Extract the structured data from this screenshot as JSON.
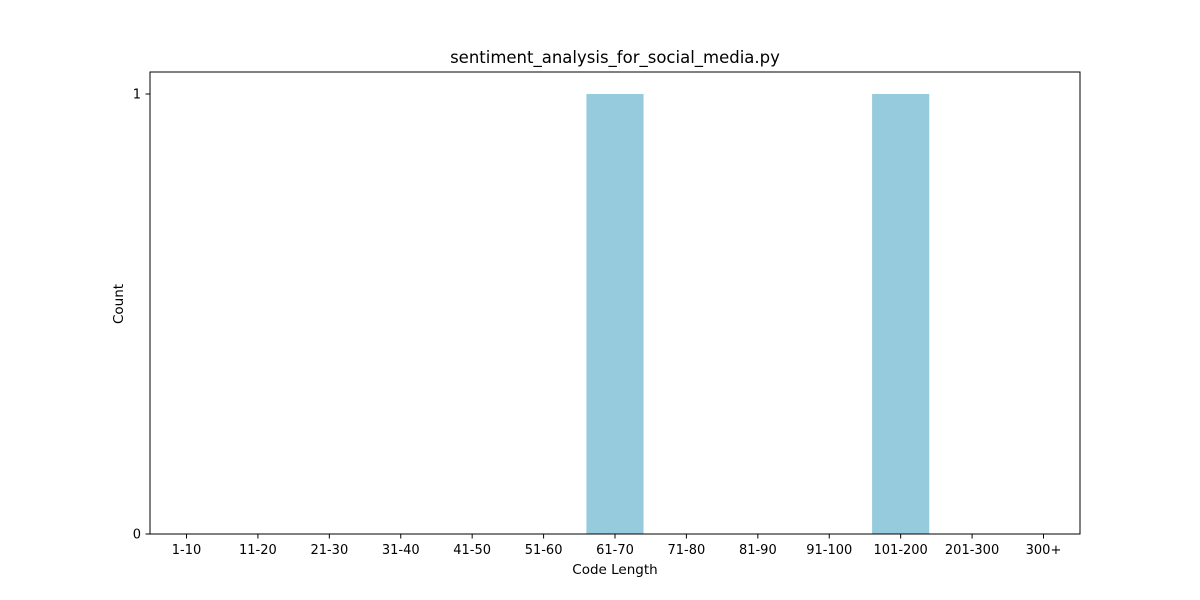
{
  "chart_data": {
    "type": "bar",
    "title": "sentiment_analysis_for_social_media.py",
    "xlabel": "Code Length",
    "ylabel": "Count",
    "categories": [
      "1-10",
      "11-20",
      "21-30",
      "31-40",
      "41-50",
      "51-60",
      "61-70",
      "71-80",
      "81-90",
      "91-100",
      "101-200",
      "201-300",
      "300+"
    ],
    "values": [
      0,
      0,
      0,
      0,
      0,
      0,
      1,
      0,
      0,
      0,
      1,
      0,
      0
    ],
    "ylim": [
      0,
      1.05
    ],
    "yticks": [
      0,
      1
    ],
    "grid": false,
    "legend": "none",
    "bar_color": "#96cadd"
  }
}
